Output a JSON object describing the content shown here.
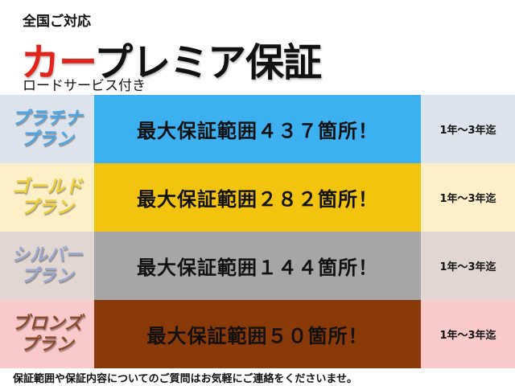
{
  "header": {
    "top_line": "全国ご対応",
    "title_red": "カー",
    "title_rest": "プレミア保証",
    "sub_line": "ロードサービス付き"
  },
  "plans": [
    {
      "name1": "プラチナ",
      "name2": "プラン",
      "coverage": "最大保証範囲４３７箇所！",
      "period": "1年～3年迄",
      "side_bg": "#dde3ec",
      "main_bg": "#3db0f2",
      "name_color": "#4aa6e6"
    },
    {
      "name1": "ゴールド",
      "name2": "プラン",
      "coverage": "最大保証範囲２８２箇所！",
      "period": "1年～3年迄",
      "side_bg": "#fdf0c9",
      "main_bg": "#f3c40f",
      "name_color": "#f0cf36"
    },
    {
      "name1": "シルバー",
      "name2": "プラン",
      "coverage": "最大保証範囲１４４箇所！",
      "period": "1年～3年迄",
      "side_bg": "#e2d6d2",
      "main_bg": "#a6a6a6",
      "name_color": "#9aa9d2"
    },
    {
      "name1": "ブロンズ",
      "name2": "プラン",
      "coverage": "最大保証範囲５０箇所！",
      "period": "1年～3年迄",
      "side_bg": "#f9caca",
      "main_bg": "#8a3a08",
      "name_color": "#8a4a2a"
    }
  ],
  "footer": {
    "note": "保証範囲や保証内容についてのご質問はお気軽にご連絡をくださいませ。"
  }
}
